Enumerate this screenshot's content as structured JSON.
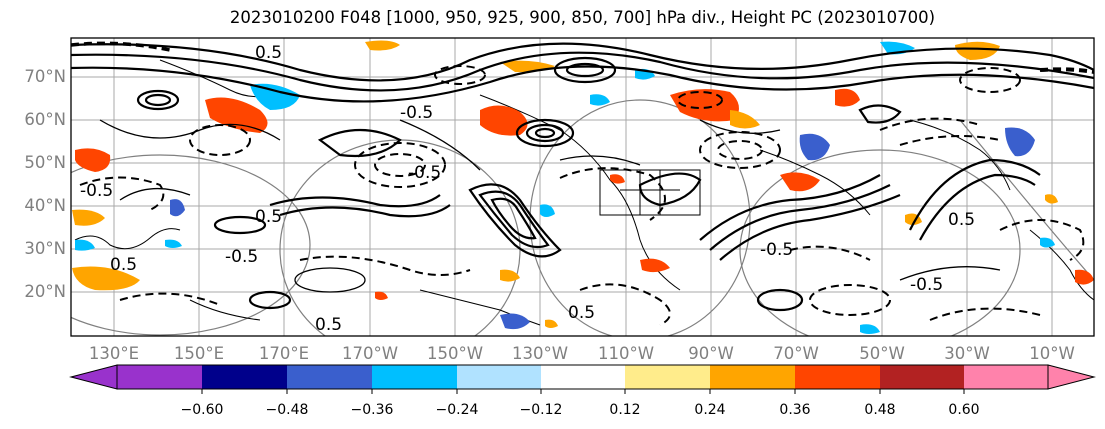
{
  "title": "2023010200 F048 [1000, 950, 925, 900, 850, 700] hPa div., Height PC (2023010700)",
  "lat_labels": [
    "70°N",
    "60°N",
    "50°N",
    "40°N",
    "30°N",
    "20°N"
  ],
  "lon_labels": [
    "130°E",
    "150°E",
    "170°E",
    "170°W",
    "150°W",
    "130°W",
    "110°W",
    "90°W",
    "70°W",
    "50°W",
    "30°W",
    "10°W"
  ],
  "colorbar": {
    "ticks": [
      "−0.60",
      "−0.48",
      "−0.36",
      "−0.24",
      "−0.12",
      "0.12",
      "0.24",
      "0.36",
      "0.48",
      "0.60"
    ],
    "colors": [
      "#9932cc",
      "#00008b",
      "#3a5fcd",
      "#00bfff",
      "#b0e2ff",
      "#ffffff",
      "#ffec8b",
      "#ffa500",
      "#ff4500",
      "#b22222",
      "#ff82ab"
    ]
  },
  "contour_labels": [
    "0.5",
    "-0.5",
    "0.5",
    "-0.5",
    "0.5",
    "-0.5",
    "0.5",
    "0.5",
    "-0.5",
    "-0.5",
    "0.5",
    "-0.5"
  ]
}
